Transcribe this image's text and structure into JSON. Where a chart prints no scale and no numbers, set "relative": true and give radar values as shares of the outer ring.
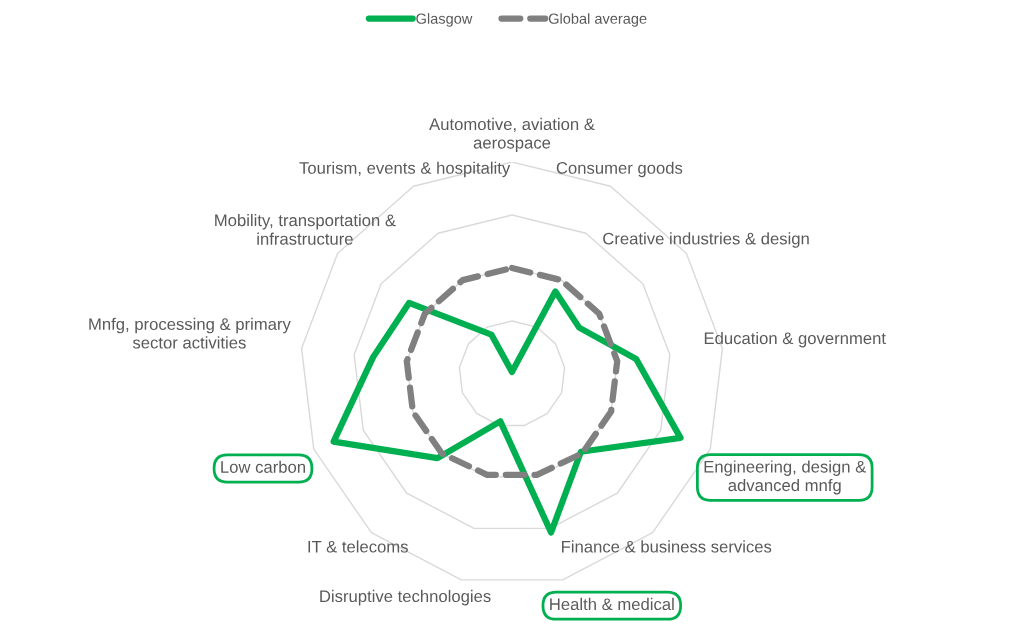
{
  "chart_data": {
    "type": "radar",
    "relative": true,
    "grid": true,
    "legend": "top",
    "categories": [
      "Automotive, aviation &\naerospace",
      "Consumer goods",
      "Creative industries & design",
      "Education & government",
      "Engineering, design &\nadvanced mnfg",
      "Finance & business services",
      "Health & medical",
      "Disruptive technologies",
      "IT & telecoms",
      "Low carbon",
      "Mnfg, processing & primary\nsector activities",
      "Mobility, transportation &\ninfrastructure",
      "Tourism, events & hospitality"
    ],
    "colors": [
      null,
      null,
      null,
      null,
      "#00b050",
      null,
      "#00b050",
      null,
      null,
      "#00b050",
      null,
      null,
      null
    ],
    "series": [
      {
        "name": "Glasgow",
        "color": "#00b050",
        "line_style": "solid",
        "values": [
          0.01,
          0.44,
          0.385,
          0.59,
          0.85,
          0.49,
          0.77,
          0.23,
          0.53,
          0.9,
          0.66,
          0.59,
          0.21
        ]
      },
      {
        "name": "Global average",
        "color": "#808080",
        "line_style": "dashed",
        "values": [
          0.5,
          0.5,
          0.5,
          0.5,
          0.5,
          0.5,
          0.49,
          0.49,
          0.5,
          0.5,
          0.5,
          0.5,
          0.5
        ]
      }
    ]
  }
}
